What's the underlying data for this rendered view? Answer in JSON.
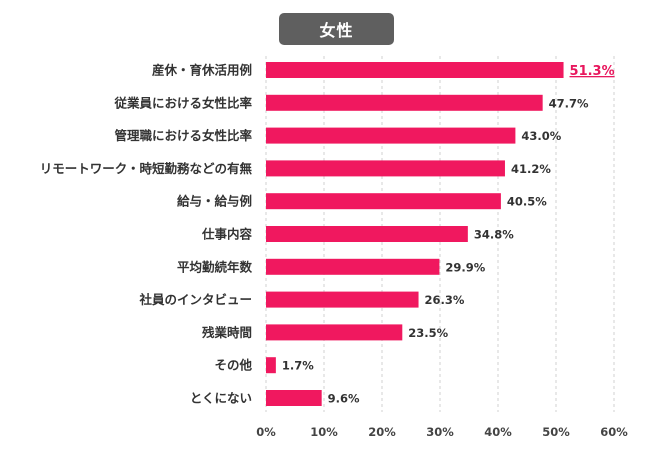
{
  "chart_data": {
    "type": "bar",
    "orientation": "horizontal",
    "title": "女性",
    "categories": [
      "産休・育休活用例",
      "従業員における女性比率",
      "管理職における女性比率",
      "リモートワーク・時短勤務などの有無",
      "給与・給与例",
      "仕事内容",
      "平均勤続年数",
      "社員のインタビュー",
      "残業時間",
      "その他",
      "とくにない"
    ],
    "values": [
      51.3,
      47.7,
      43.0,
      41.2,
      40.5,
      34.8,
      29.9,
      26.3,
      23.5,
      1.7,
      9.6
    ],
    "value_labels": [
      "51.3%",
      "47.7%",
      "43.0%",
      "41.2%",
      "40.5%",
      "34.8%",
      "29.9%",
      "26.3%",
      "23.5%",
      "1.7%",
      "9.6%"
    ],
    "xlim": [
      0,
      60
    ],
    "x_ticks": [
      "0%",
      "10%",
      "20%",
      "30%",
      "40%",
      "50%",
      "60%"
    ],
    "highlight_index": 0,
    "grid": "vertical dashed",
    "colors": {
      "bar": "#f0185f",
      "highlight_label": "#e8175d",
      "title_bg": "#5f5f5f"
    }
  }
}
